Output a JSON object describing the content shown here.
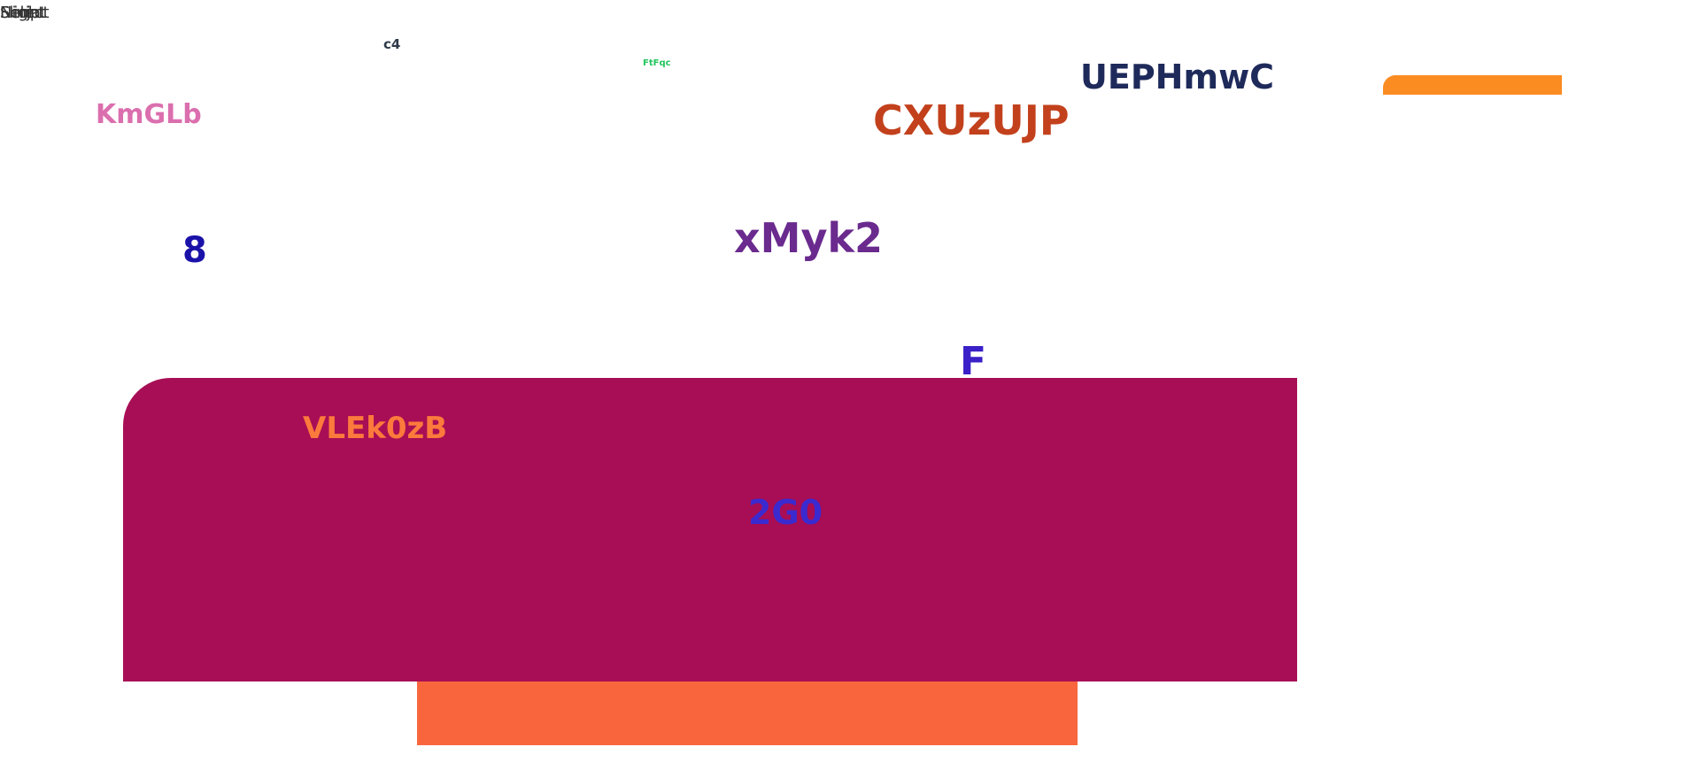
{
  "corner_texts": [
    "Flight",
    "Select",
    "Ninja",
    "Script"
  ],
  "labels": {
    "c4": "c4",
    "ftfqc": "FtFqc",
    "uephmwc": "UEPHmwC",
    "kmglb": "KmGLb",
    "cxuzujp": "CXUzUJP",
    "eight": "8",
    "xmyk2": "xMyk2",
    "f": "F",
    "vlek0zb": "VLEk0zB",
    "two_g_zero": "2G0"
  },
  "colors": {
    "c4": "#2f3a4a",
    "ftfqc": "#22c55e",
    "uephmwc": "#1e2a5a",
    "kmglb": "#db6fae",
    "cxuzujp": "#c2411c",
    "eight": "#1a12a8",
    "xmyk2": "#6a2a8e",
    "f": "#3a20c8",
    "vlek0zb": "#fb7a3c",
    "two_g_zero": "#3a2ad0",
    "panel": "#a80e55",
    "orange_bar": "#f9663e",
    "orange_tab": "#fb8c22"
  }
}
